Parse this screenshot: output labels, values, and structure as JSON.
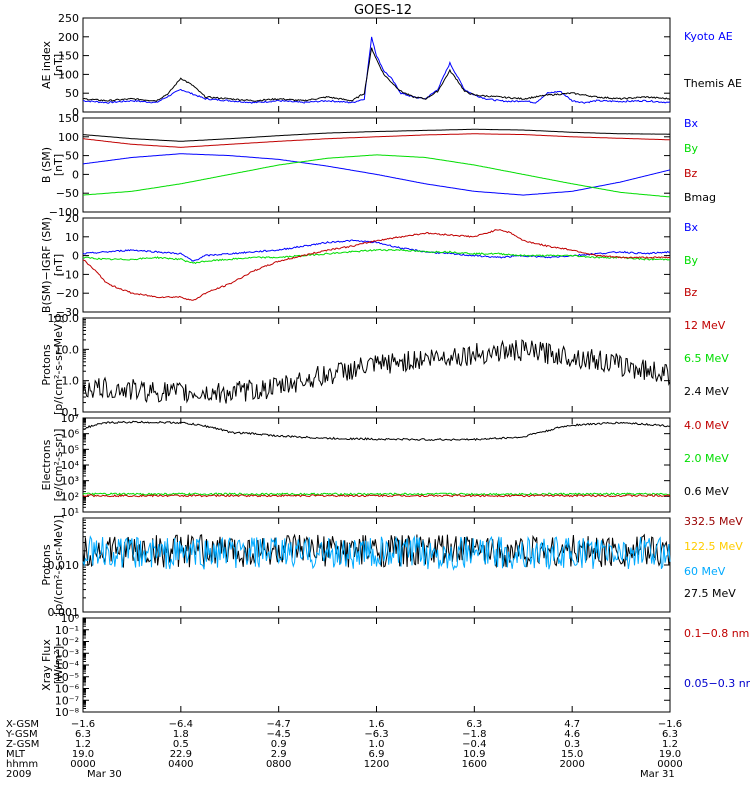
{
  "title": "GOES-12",
  "colors": {
    "black": "#000000",
    "blue": "#0000ff",
    "red": "#c00000",
    "green": "#00dd00",
    "darkred": "#990000",
    "yellow": "#ffcc00",
    "cyan": "#00aaff",
    "navy": "#0000cc"
  },
  "panels": [
    {
      "id": "ae",
      "ylabel": [
        "AE index",
        "[nT]"
      ],
      "scale": "linear",
      "ticks": [
        "0",
        "50",
        "100",
        "150",
        "200",
        "250"
      ],
      "tickValues": [
        0,
        50,
        100,
        150,
        200,
        250
      ],
      "ylim": [
        0,
        250
      ],
      "legend": [
        {
          "label": "Kyoto AE",
          "color": "#0000ff"
        },
        {
          "label": "Themis AE",
          "color": "#000000"
        }
      ]
    },
    {
      "id": "bsm",
      "ylabel": [
        "B (SM)",
        "[nT]"
      ],
      "scale": "linear",
      "ticks": [
        "−100",
        "−50",
        "0",
        "50",
        "100",
        "150"
      ],
      "tickValues": [
        -100,
        -50,
        0,
        50,
        100,
        150
      ],
      "ylim": [
        -100,
        150
      ],
      "legend": [
        {
          "label": "Bx",
          "color": "#0000ff"
        },
        {
          "label": "By",
          "color": "#00dd00"
        },
        {
          "label": "Bz",
          "color": "#c00000"
        },
        {
          "label": "Bmag",
          "color": "#000000"
        }
      ]
    },
    {
      "id": "bigrf",
      "ylabel": [
        "B(SM)−IGRF (SM)",
        "[nT]"
      ],
      "scale": "linear",
      "ticks": [
        "−30",
        "−20",
        "−10",
        "0",
        "10",
        "20"
      ],
      "tickValues": [
        -30,
        -20,
        -10,
        0,
        10,
        20
      ],
      "ylim": [
        -30,
        20
      ],
      "legend": [
        {
          "label": "Bx",
          "color": "#0000ff"
        },
        {
          "label": "By",
          "color": "#00dd00"
        },
        {
          "label": "Bz",
          "color": "#c00000"
        }
      ]
    },
    {
      "id": "protons",
      "ylabel": [
        "Protons",
        "[p/(cm²-s-sr-MeV)]"
      ],
      "scale": "log",
      "ticks": [
        "0.1",
        "1.0",
        "10.0",
        "100.0"
      ],
      "tickValues": [
        0.1,
        1,
        10,
        100
      ],
      "ylim": [
        0.1,
        100
      ],
      "legend": [
        {
          "label": "12 MeV",
          "color": "#c00000"
        },
        {
          "label": "6.5 MeV",
          "color": "#00dd00"
        },
        {
          "label": "2.4 MeV",
          "color": "#000000"
        }
      ]
    },
    {
      "id": "electrons",
      "ylabel": [
        "Electrons",
        "[e/(cm²-s-sr)]"
      ],
      "scale": "log",
      "ticks": [
        "10¹",
        "10²",
        "10³",
        "10⁴",
        "10⁵",
        "10⁶",
        "10⁷"
      ],
      "tickValues": [
        10,
        100,
        1000,
        10000,
        100000,
        1000000,
        10000000
      ],
      "ylim": [
        10,
        10000000
      ],
      "legend": [
        {
          "label": "4.0 MeV",
          "color": "#c00000"
        },
        {
          "label": "2.0 MeV",
          "color": "#00dd00"
        },
        {
          "label": "0.6 MeV",
          "color": "#000000"
        }
      ]
    },
    {
      "id": "hiprotons",
      "ylabel": [
        "Protons",
        "[p/(cm²-s-sr-MeV)]"
      ],
      "scale": "log",
      "ticks": [
        "0.001",
        "0.010"
      ],
      "tickValues": [
        0.001,
        0.01
      ],
      "ylim": [
        0.001,
        0.1
      ],
      "legend": [
        {
          "label": "332.5 MeV",
          "color": "#990000"
        },
        {
          "label": "122.5 MeV",
          "color": "#ffcc00"
        },
        {
          "label": "60 MeV",
          "color": "#00aaff"
        },
        {
          "label": "27.5 MeV",
          "color": "#000000"
        }
      ]
    },
    {
      "id": "xray",
      "ylabel": [
        "Xray Flux",
        "[W/m²]"
      ],
      "scale": "log",
      "ticks": [
        "10⁻⁸",
        "10⁻⁷",
        "10⁻⁶",
        "10⁻⁵",
        "10⁻⁴",
        "10⁻³",
        "10⁻²",
        "10⁻¹",
        "10⁰"
      ],
      "tickValues": [
        1e-08,
        1e-07,
        1e-06,
        1e-05,
        0.0001,
        0.001,
        0.01,
        0.1,
        1
      ],
      "ylim": [
        1e-08,
        1
      ],
      "legend": [
        {
          "label": "0.1−0.8 nm",
          "color": "#c00000"
        },
        {
          "label": "0.05−0.3 nm",
          "color": "#0000cc"
        }
      ]
    }
  ],
  "chart_data": {
    "type": "line",
    "x_hours": [
      0,
      4,
      8,
      12,
      16,
      20,
      24
    ],
    "series": [
      {
        "panel": 0,
        "name": "Kyoto AE",
        "color": "#0000ff",
        "x": [
          0,
          1,
          2,
          3,
          4,
          5,
          6,
          7,
          8,
          9,
          10,
          11,
          11.5,
          11.8,
          12,
          12.3,
          12.6,
          13,
          13.5,
          14,
          14.5,
          15,
          15.3,
          15.6,
          16,
          16.5,
          17,
          17.5,
          18,
          18.5,
          19,
          19.5,
          20,
          20.5,
          21,
          22,
          23,
          24
        ],
        "y": [
          30,
          25,
          30,
          25,
          60,
          35,
          30,
          25,
          30,
          25,
          30,
          25,
          35,
          200,
          150,
          110,
          90,
          50,
          40,
          35,
          60,
          130,
          95,
          60,
          45,
          35,
          30,
          28,
          30,
          25,
          50,
          55,
          30,
          25,
          30,
          28,
          30,
          25
        ]
      },
      {
        "panel": 0,
        "name": "Themis AE",
        "color": "#000000",
        "x": [
          0,
          1,
          2,
          3,
          3.5,
          4,
          4.5,
          5,
          6,
          7,
          8,
          9,
          10,
          11,
          11.5,
          11.8,
          12,
          12.3,
          12.6,
          13,
          13.5,
          14,
          14.5,
          15,
          15.3,
          15.6,
          16,
          17,
          18,
          19,
          20,
          21,
          22,
          23,
          24
        ],
        "y": [
          35,
          30,
          35,
          30,
          50,
          90,
          70,
          40,
          35,
          30,
          35,
          30,
          40,
          30,
          50,
          170,
          140,
          100,
          80,
          55,
          40,
          35,
          55,
          110,
          85,
          55,
          45,
          40,
          35,
          45,
          50,
          40,
          35,
          40,
          35
        ]
      },
      {
        "panel": 1,
        "name": "Bx",
        "color": "#0000ff",
        "x": [
          0,
          2,
          4,
          6,
          8,
          10,
          12,
          14,
          16,
          18,
          20,
          22,
          24
        ],
        "y": [
          28,
          45,
          55,
          50,
          40,
          22,
          0,
          -25,
          -45,
          -55,
          -45,
          -20,
          12
        ]
      },
      {
        "panel": 1,
        "name": "By",
        "color": "#00dd00",
        "x": [
          0,
          2,
          4,
          6,
          8,
          10,
          12,
          14,
          16,
          18,
          20,
          22,
          24
        ],
        "y": [
          -55,
          -45,
          -25,
          0,
          25,
          43,
          52,
          45,
          25,
          0,
          -25,
          -48,
          -60
        ]
      },
      {
        "panel": 1,
        "name": "Bz",
        "color": "#c00000",
        "x": [
          0,
          2,
          4,
          6,
          8,
          10,
          12,
          14,
          16,
          18,
          20,
          22,
          24
        ],
        "y": [
          95,
          80,
          72,
          80,
          88,
          95,
          100,
          105,
          108,
          106,
          100,
          96,
          92
        ]
      },
      {
        "panel": 1,
        "name": "Bmag",
        "color": "#000000",
        "x": [
          0,
          2,
          4,
          6,
          8,
          10,
          12,
          14,
          16,
          18,
          20,
          22,
          24
        ],
        "y": [
          106,
          95,
          88,
          95,
          103,
          110,
          114,
          117,
          120,
          118,
          112,
          108,
          107
        ]
      },
      {
        "panel": 2,
        "name": "Bx",
        "color": "#0000ff",
        "x": [
          0,
          1,
          2,
          3,
          4,
          4.5,
          5,
          6,
          7,
          8,
          9,
          10,
          11,
          12,
          13,
          14,
          15,
          16,
          17,
          18,
          19,
          20,
          21,
          22,
          23,
          24
        ],
        "y": [
          1,
          2,
          3,
          2,
          1,
          -3,
          0,
          1,
          2,
          3,
          5,
          7,
          8,
          7,
          4,
          2,
          1,
          0,
          -1,
          0,
          -1,
          0,
          1,
          2,
          1,
          2
        ]
      },
      {
        "panel": 2,
        "name": "By",
        "color": "#00dd00",
        "x": [
          0,
          1,
          2,
          3,
          4,
          4.5,
          5,
          6,
          7,
          8,
          9,
          10,
          11,
          12,
          13,
          14,
          15,
          16,
          17,
          18,
          19,
          20,
          21,
          22,
          23,
          24
        ],
        "y": [
          -1,
          -2,
          -2,
          -1,
          -2,
          -4,
          -3,
          -2,
          -1,
          -1,
          0,
          1,
          2,
          3,
          3,
          2,
          2,
          1,
          1,
          0,
          0,
          0,
          -1,
          -1,
          -2,
          -2
        ]
      },
      {
        "panel": 2,
        "name": "Bz",
        "color": "#c00000",
        "x": [
          0,
          0.5,
          1,
          2,
          3,
          4,
          4.5,
          5,
          6,
          7,
          8,
          9,
          10,
          11,
          12,
          13,
          14,
          15,
          16,
          17,
          17.5,
          18,
          19,
          20,
          21,
          22,
          23,
          24
        ],
        "y": [
          -2,
          -8,
          -15,
          -20,
          -22,
          -22,
          -24,
          -20,
          -15,
          -8,
          -3,
          0,
          3,
          5,
          8,
          10,
          12,
          11,
          10,
          14,
          12,
          8,
          5,
          3,
          0,
          -1,
          -1,
          -1
        ]
      },
      {
        "panel": 3,
        "name": "2.4 MeV",
        "color": "#000000",
        "x": [
          0,
          2,
          4,
          6,
          8,
          10,
          12,
          14,
          16,
          17,
          18,
          20,
          22,
          24
        ],
        "y": [
          0.6,
          0.5,
          0.4,
          0.4,
          0.6,
          1.5,
          3.0,
          5.0,
          7.0,
          8.5,
          9.0,
          6.0,
          3.0,
          1.5
        ]
      },
      {
        "panel": 4,
        "name": "0.6 MeV",
        "color": "#000000",
        "x": [
          0,
          1,
          2,
          4,
          5,
          6,
          7,
          8,
          10,
          12,
          14,
          16,
          18,
          19,
          20,
          22,
          23,
          24
        ],
        "y": [
          2000000,
          5000000,
          5500000,
          5000000,
          3000000,
          1200000,
          1000000,
          700000,
          500000,
          450000,
          420000,
          420000,
          600000,
          1500000,
          3500000,
          5000000,
          4000000,
          3000000
        ]
      },
      {
        "panel": 4,
        "name": "2.0 MeV",
        "color": "#00dd00",
        "x": [
          0,
          24
        ],
        "y": [
          140,
          140
        ]
      },
      {
        "panel": 4,
        "name": "4.0 MeV",
        "color": "#c00000",
        "x": [
          0,
          24
        ],
        "y": [
          110,
          110
        ]
      },
      {
        "panel": 5,
        "name": "27.5 MeV",
        "color": "#000000",
        "x": [
          0,
          24
        ],
        "y": [
          0.02,
          0.02
        ]
      },
      {
        "panel": 5,
        "name": "60 MeV",
        "color": "#00aaff",
        "x": [
          0,
          24
        ],
        "y": [
          0.018,
          0.018
        ]
      }
    ]
  },
  "xaxis": {
    "rows": [
      {
        "label": "X-GSM",
        "values": [
          "−1.6",
          "−6.4",
          "−4.7",
          "1.6",
          "6.3",
          "4.7",
          "−1.6"
        ]
      },
      {
        "label": "Y-GSM",
        "values": [
          "6.3",
          "1.8",
          "−4.5",
          "−6.3",
          "−1.8",
          "4.6",
          "6.3"
        ]
      },
      {
        "label": "Z-GSM",
        "values": [
          "1.2",
          "0.5",
          "0.9",
          "1.0",
          "−0.4",
          "0.3",
          "1.2"
        ]
      },
      {
        "label": "MLT",
        "values": [
          "19.0",
          "22.9",
          "2.9",
          "6.9",
          "10.9",
          "15.0",
          "19.0"
        ]
      },
      {
        "label": "hhmm",
        "values": [
          "0000",
          "0400",
          "0800",
          "1200",
          "1600",
          "2000",
          "0000"
        ]
      }
    ],
    "year": "2009",
    "dates": [
      {
        "hour": 0,
        "label": "Mar 30"
      },
      {
        "hour": 24,
        "label": "Mar 31"
      }
    ]
  }
}
